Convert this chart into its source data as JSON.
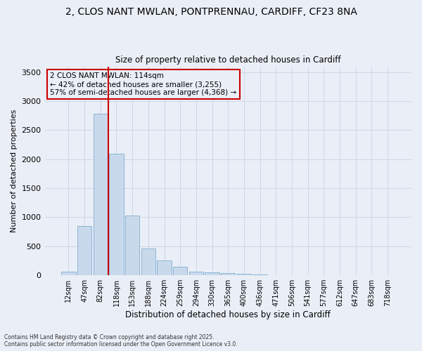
{
  "title_line1": "2, CLOS NANT MWLAN, PONTPRENNAU, CARDIFF, CF23 8NA",
  "title_line2": "Size of property relative to detached houses in Cardiff",
  "xlabel": "Distribution of detached houses by size in Cardiff",
  "ylabel": "Number of detached properties",
  "bar_labels": [
    "12sqm",
    "47sqm",
    "82sqm",
    "118sqm",
    "153sqm",
    "188sqm",
    "224sqm",
    "259sqm",
    "294sqm",
    "330sqm",
    "365sqm",
    "400sqm",
    "436sqm",
    "471sqm",
    "506sqm",
    "541sqm",
    "577sqm",
    "612sqm",
    "647sqm",
    "683sqm",
    "718sqm"
  ],
  "bar_values": [
    60,
    850,
    2780,
    2100,
    1030,
    460,
    250,
    150,
    65,
    55,
    40,
    20,
    8,
    4,
    3,
    2,
    2,
    1,
    1,
    1,
    1
  ],
  "bar_color": "#c9d9ec",
  "bar_edge_color": "#8ab4d4",
  "grid_color": "#d0d8e8",
  "bg_color": "#eaeff7",
  "vline_color": "#cc0000",
  "vline_x_index": 2.5,
  "annotation_text": "2 CLOS NANT MWLAN: 114sqm\n← 42% of detached houses are smaller (3,255)\n57% of semi-detached houses are larger (4,368) →",
  "annotation_box_color": "#cc0000",
  "ylim": [
    0,
    3600
  ],
  "yticks": [
    0,
    500,
    1000,
    1500,
    2000,
    2500,
    3000,
    3500
  ],
  "footer_line1": "Contains HM Land Registry data © Crown copyright and database right 2025.",
  "footer_line2": "Contains public sector information licensed under the Open Government Licence v3.0."
}
